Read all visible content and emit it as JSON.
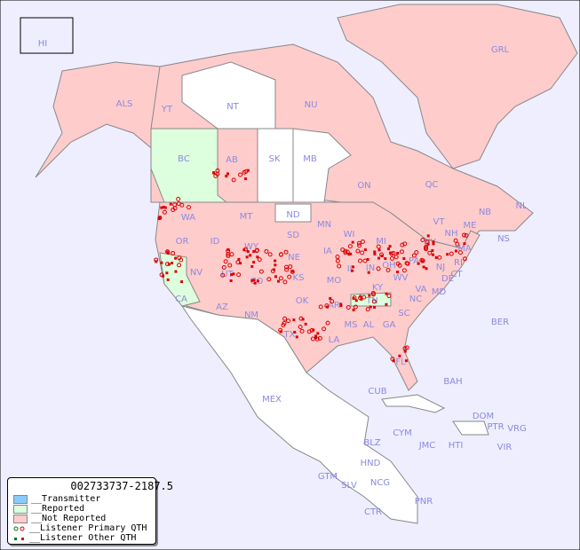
{
  "title": "002733737-2187.5",
  "colors": {
    "ocean": "#eeeeff",
    "transmitter": "#88ccff",
    "reported": "#ddffdd",
    "not_reported": "#ffcccc",
    "no_data": "#ffffff",
    "listener": "#dd0000",
    "listener_alt": "#007700"
  },
  "legend": [
    {
      "label": "__Transmitter",
      "swatch": "transmitter"
    },
    {
      "label": "__Reported",
      "swatch": "reported"
    },
    {
      "label": "__Not Reported",
      "swatch": "not_reported"
    },
    {
      "label": "__Listener Primary QTH",
      "swatch": "primary-dot"
    },
    {
      "label": "__Listener Other QTH",
      "swatch": "other-dot"
    }
  ],
  "regions": [
    "HI",
    "ALS",
    "YT",
    "NT",
    "NU",
    "GRL",
    "BC",
    "AB",
    "SK",
    "MB",
    "ON",
    "QC",
    "NL",
    "NS",
    "NB",
    "WA",
    "OR",
    "CA",
    "ID",
    "NV",
    "MT",
    "WY",
    "UT",
    "AZ",
    "CO",
    "NM",
    "ND",
    "SD",
    "NE",
    "KS",
    "OK",
    "TX",
    "MN",
    "IA",
    "MO",
    "AR",
    "LA",
    "WI",
    "IL",
    "MI",
    "IN",
    "OH",
    "KY",
    "TN",
    "MS",
    "AL",
    "GA",
    "FL",
    "SC",
    "NC",
    "VA",
    "WV",
    "PA",
    "NY",
    "VT",
    "NH",
    "ME",
    "MA",
    "CT",
    "RI",
    "NJ",
    "DE",
    "MD",
    "BER",
    "MEX",
    "CUB",
    "BAH",
    "CYM",
    "JMC",
    "HTI",
    "DOM",
    "PTR",
    "VRG",
    "VIR",
    "BLZ",
    "GTM",
    "HND",
    "SLV",
    "NCG",
    "CTR",
    "PNR"
  ]
}
